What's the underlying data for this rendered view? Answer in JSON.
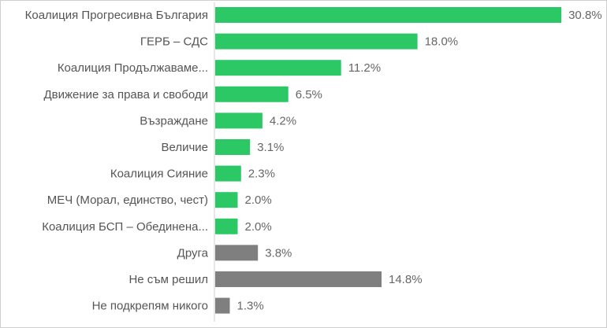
{
  "chart_data": {
    "type": "bar",
    "orientation": "horizontal",
    "title": "",
    "xlabel": "",
    "ylabel": "",
    "xlim": [
      0,
      31
    ],
    "grid": false,
    "legend": "none",
    "value_suffix": "%",
    "colors": {
      "party": "#2dc866",
      "other": "#7f7f7f"
    },
    "categories": [
      "Коалиция Прогресивна България",
      "ГЕРБ – СДС",
      "Коалиция Продължаваме...",
      "Движение за права и свободи",
      "Възраждане",
      "Величие",
      "Коалиция Сияние",
      "МЕЧ (Морал, единство, чест)",
      "Коалиция БСП – Обединена...",
      "Друга",
      "Не съм решил",
      "Не подкрепям никого"
    ],
    "values": [
      30.8,
      18.0,
      11.2,
      6.5,
      4.2,
      3.1,
      2.3,
      2.0,
      2.0,
      3.8,
      14.8,
      1.3
    ],
    "value_labels": [
      "30.8%",
      "18.0%",
      "11.2%",
      "6.5%",
      "4.2%",
      "3.1%",
      "2.3%",
      "2.0%",
      "2.0%",
      "3.8%",
      "14.8%",
      "1.3%"
    ],
    "bar_color_keys": [
      "party",
      "party",
      "party",
      "party",
      "party",
      "party",
      "party",
      "party",
      "party",
      "other",
      "other",
      "other"
    ]
  }
}
